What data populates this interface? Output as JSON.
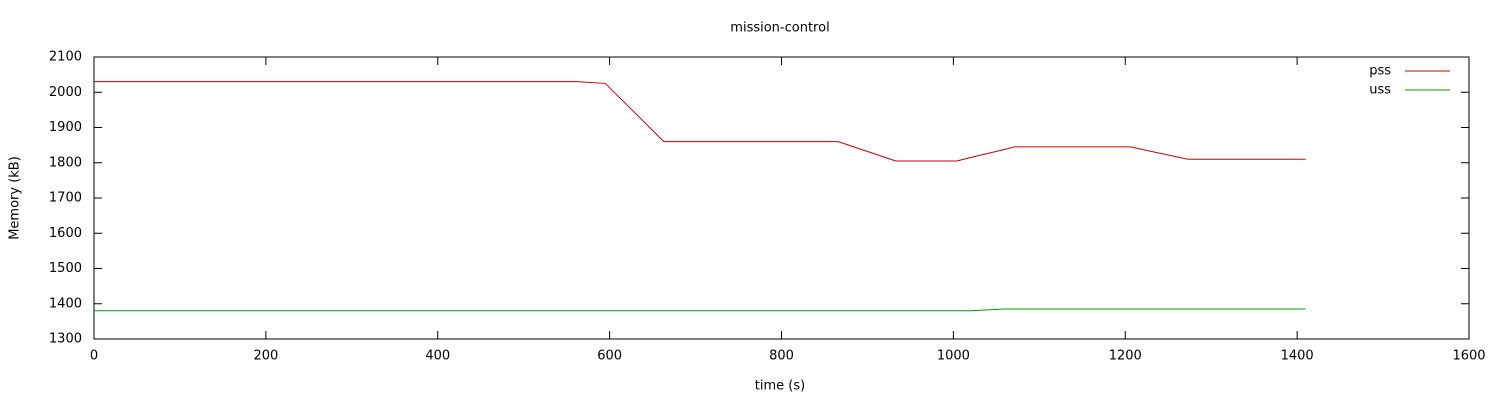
{
  "chart_data": {
    "type": "line",
    "title": "mission-control",
    "xlabel": "time (s)",
    "ylabel": "Memory (kB)",
    "x": [
      0,
      562,
      595,
      663,
      866,
      933,
      1004,
      1020,
      1060,
      1071,
      1206,
      1273,
      1410
    ],
    "series": [
      {
        "name": "pss",
        "color": "#cc0000",
        "values": [
          2030,
          2030,
          2025,
          1860,
          1860,
          1805,
          1805,
          1815,
          1838,
          1845,
          1845,
          1810,
          1810
        ]
      },
      {
        "name": "uss",
        "color": "#00a000",
        "values": [
          1380,
          1380,
          1380,
          1380,
          1380,
          1380,
          1380,
          1380,
          1385,
          1385,
          1385,
          1385,
          1385
        ]
      }
    ],
    "xlim": [
      0,
      1600
    ],
    "xticks": [
      0,
      200,
      400,
      600,
      800,
      1000,
      1200,
      1400,
      1600
    ],
    "ylim": [
      1300,
      2100
    ],
    "yticks": [
      1300,
      1400,
      1500,
      1600,
      1700,
      1800,
      1900,
      2000,
      2100
    ],
    "grid": false,
    "legend": "top-right"
  }
}
